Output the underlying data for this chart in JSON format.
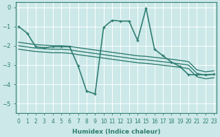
{
  "xlabel": "Humidex (Indice chaleur)",
  "bg_color": "#cce8e8",
  "grid_color": "#ffffff",
  "line_color": "#2e7d72",
  "xlim": [
    -0.3,
    23.3
  ],
  "ylim": [
    -5.5,
    0.25
  ],
  "yticks": [
    0,
    -1,
    -2,
    -3,
    -4,
    -5
  ],
  "xticks": [
    0,
    1,
    2,
    3,
    4,
    5,
    6,
    7,
    8,
    9,
    10,
    11,
    12,
    13,
    14,
    15,
    16,
    17,
    18,
    19,
    20,
    21,
    22,
    23
  ],
  "main_x": [
    0,
    1,
    2,
    3,
    4,
    5,
    6,
    7,
    8,
    9,
    10,
    11,
    12,
    13,
    14,
    15,
    16,
    17,
    18,
    19,
    20,
    21,
    22,
    23
  ],
  "main_y": [
    -1.0,
    -1.35,
    -2.05,
    -2.1,
    -2.05,
    -2.05,
    -2.05,
    -3.05,
    -4.35,
    -4.5,
    -1.05,
    -0.68,
    -0.72,
    -0.72,
    -1.72,
    -0.05,
    -2.18,
    -2.52,
    -2.85,
    -3.08,
    -3.5,
    -3.5,
    -3.5,
    -3.48
  ],
  "trend1_x": [
    0,
    1,
    2,
    3,
    4,
    5,
    6,
    7,
    8,
    9,
    10,
    11,
    12,
    13,
    14,
    15,
    16,
    17,
    18,
    19,
    20,
    21,
    22,
    23
  ],
  "trend1_y": [
    -1.82,
    -1.88,
    -1.94,
    -1.97,
    -2.0,
    -2.0,
    -2.03,
    -2.1,
    -2.16,
    -2.22,
    -2.28,
    -2.34,
    -2.4,
    -2.46,
    -2.52,
    -2.55,
    -2.6,
    -2.65,
    -2.7,
    -2.76,
    -2.82,
    -3.25,
    -3.35,
    -3.3
  ],
  "trend2_x": [
    0,
    1,
    2,
    3,
    4,
    5,
    6,
    7,
    8,
    9,
    10,
    11,
    12,
    13,
    14,
    15,
    16,
    17,
    18,
    19,
    20,
    21,
    22,
    23
  ],
  "trend2_y": [
    -2.0,
    -2.06,
    -2.12,
    -2.15,
    -2.18,
    -2.18,
    -2.21,
    -2.28,
    -2.34,
    -2.4,
    -2.46,
    -2.52,
    -2.58,
    -2.64,
    -2.7,
    -2.73,
    -2.78,
    -2.83,
    -2.88,
    -2.94,
    -3.0,
    -3.43,
    -3.53,
    -3.48
  ],
  "trend3_x": [
    0,
    1,
    2,
    3,
    4,
    5,
    6,
    7,
    8,
    9,
    10,
    11,
    12,
    13,
    14,
    15,
    16,
    17,
    18,
    19,
    20,
    21,
    22,
    23
  ],
  "trend3_y": [
    -2.18,
    -2.24,
    -2.3,
    -2.33,
    -2.36,
    -2.36,
    -2.39,
    -2.46,
    -2.52,
    -2.58,
    -2.64,
    -2.7,
    -2.76,
    -2.82,
    -2.88,
    -2.91,
    -2.96,
    -3.01,
    -3.06,
    -3.12,
    -3.18,
    -3.61,
    -3.71,
    -3.66
  ]
}
